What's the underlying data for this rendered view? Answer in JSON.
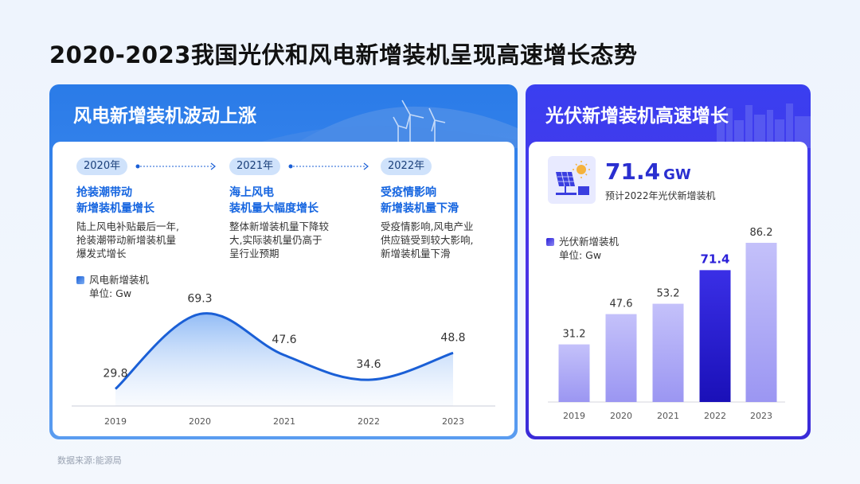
{
  "title": "2020-2023我国光伏和风电新增装机呈现高速增长态势",
  "source": "数据来源:能源局",
  "left_panel": {
    "heading": "风电新增装机波动上涨",
    "events": [
      {
        "year": "2020年",
        "title1": "抢装潮带动",
        "title2": "新增装机量增长",
        "desc": [
          "陆上风电补贴最后一年,",
          "抢装潮带动新增装机量",
          "爆发式增长"
        ]
      },
      {
        "year": "2021年",
        "title1": "海上风电",
        "title2": "装机量大幅度增长",
        "desc": [
          "整体新增装机量下降较",
          "大,实际装机量仍高于",
          "呈行业预期"
        ]
      },
      {
        "year": "2022年",
        "title1": "受疫情影响",
        "title2": "新增装机量下滑",
        "desc": [
          "受疫情影响,风电产业",
          "供应链受到较大影响,",
          "新增装机量下滑"
        ]
      }
    ],
    "legend_name": "风电新增装机",
    "unit_label": "单位:  Gw"
  },
  "right_panel": {
    "heading": "光伏新增装机高速增长",
    "kpi_value": "71.4",
    "kpi_unit": "GW",
    "kpi_label": "预计2022年光伏新增装机",
    "legend_name": "光伏新增装机",
    "unit_label": "单位:  Gw"
  },
  "colors": {
    "wind_line": "#1a5fd6",
    "solar_bar": "#b9b6f7",
    "solar_highlight": "#2a1fd8",
    "left_panel_bg": "#2f80ea",
    "right_panel_bg": "#3f36e8"
  },
  "chart_data": [
    {
      "type": "area",
      "series": [
        {
          "name": "风电新增装机",
          "values": [
            29.8,
            69.3,
            47.6,
            34.6,
            48.8
          ]
        }
      ],
      "categories": [
        "2019",
        "2020",
        "2021",
        "2022",
        "2023"
      ],
      "ylim": [
        0,
        80
      ],
      "grid": false
    },
    {
      "type": "bar",
      "series": [
        {
          "name": "光伏新增装机",
          "values": [
            31.2,
            47.6,
            53.2,
            71.4,
            86.2
          ]
        }
      ],
      "categories": [
        "2019",
        "2020",
        "2021",
        "2022",
        "2023"
      ],
      "highlight_index": 3,
      "ylim": [
        0,
        100
      ],
      "grid": false
    }
  ]
}
